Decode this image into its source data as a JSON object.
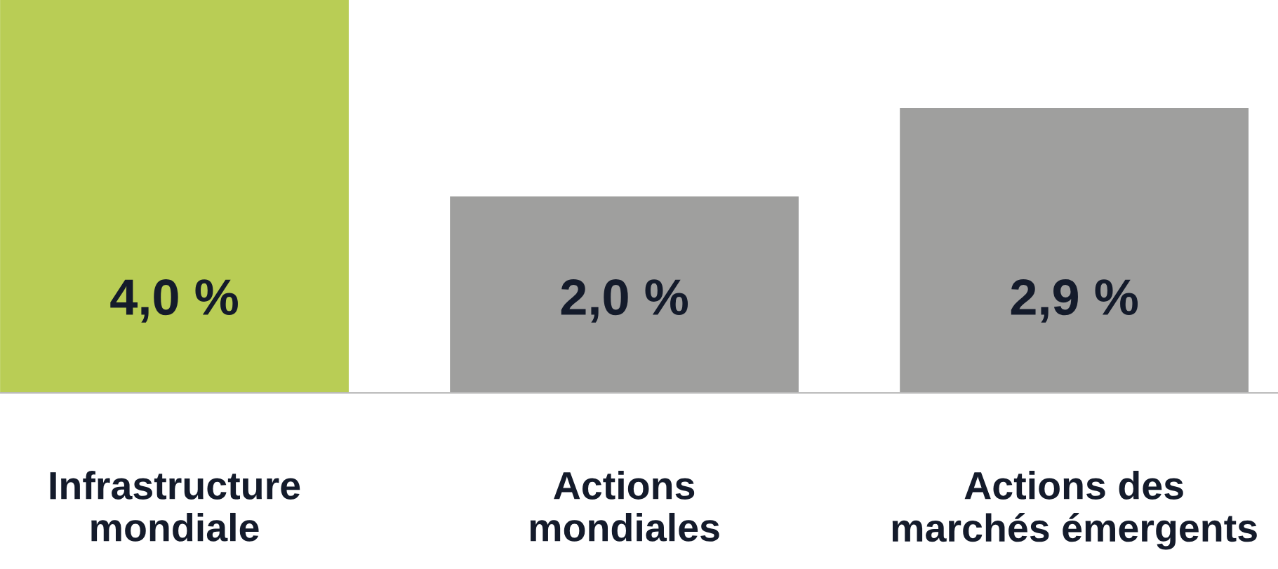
{
  "chart_data": {
    "type": "bar",
    "categories": [
      "Infrastructure\nmondiale",
      "Actions\nmondiales",
      "Actions des\nmarchés émergents"
    ],
    "values": [
      4.0,
      2.0,
      2.9
    ],
    "colors": [
      "#b9cd55",
      "#9f9f9e",
      "#9f9f9e"
    ],
    "value_labels": [
      "4,0 %",
      "2,0 %",
      "2,9 %"
    ],
    "grid": false,
    "legend": false
  }
}
